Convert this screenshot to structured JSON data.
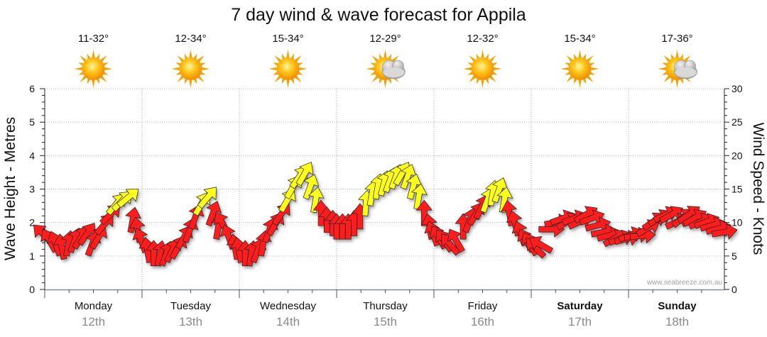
{
  "chart_data": {
    "type": "line",
    "title": "7 day wind & wave forecast for Appila",
    "ylabel_left": "Wave Height - Metres",
    "ylabel_right": "Wind Speed - Knots",
    "ylim_left": [
      0,
      6
    ],
    "ylim_right": [
      0,
      30
    ],
    "yticks_left": [
      "0",
      "1",
      "2",
      "3",
      "4",
      "5",
      "6"
    ],
    "yticks_right": [
      "0",
      "5",
      "10",
      "15",
      "20",
      "25",
      "30"
    ],
    "credit": "www.seabreeze.com.au",
    "days": [
      {
        "name": "Monday",
        "date": "12th",
        "temp": "11-32°",
        "weather": "sunny",
        "bold": false
      },
      {
        "name": "Tuesday",
        "date": "13th",
        "temp": "12-34°",
        "weather": "sunny",
        "bold": false
      },
      {
        "name": "Wednesday",
        "date": "14th",
        "temp": "15-34°",
        "weather": "sunny",
        "bold": false
      },
      {
        "name": "Thursday",
        "date": "15th",
        "temp": "12-29°",
        "weather": "partly-cloudy",
        "bold": false
      },
      {
        "name": "Friday",
        "date": "16th",
        "temp": "12-32°",
        "weather": "sunny",
        "bold": false
      },
      {
        "name": "Saturday",
        "date": "17th",
        "temp": "15-34°",
        "weather": "sunny",
        "bold": true
      },
      {
        "name": "Sunday",
        "date": "18th",
        "temp": "17-36°",
        "weather": "partly-cloudy",
        "bold": true
      }
    ],
    "wind_series": {
      "name": "Wind speed (knots) with direction",
      "colors": {
        "light": "#ff1a1a",
        "strong": "#ffff1a"
      },
      "strong_threshold_knots": 12.5,
      "points": [
        {
          "t": 0.0,
          "kts": 8.0,
          "dir": 135
        },
        {
          "t": 0.06,
          "kts": 7.0,
          "dir": 150
        },
        {
          "t": 0.12,
          "kts": 6.5,
          "dir": 160
        },
        {
          "t": 0.18,
          "kts": 6.0,
          "dir": 170
        },
        {
          "t": 0.24,
          "kts": 6.5,
          "dir": 190
        },
        {
          "t": 0.3,
          "kts": 7.0,
          "dir": 200
        },
        {
          "t": 0.36,
          "kts": 7.5,
          "dir": 210
        },
        {
          "t": 0.42,
          "kts": 8.0,
          "dir": 215
        },
        {
          "t": 0.48,
          "kts": 6.5,
          "dir": 200
        },
        {
          "t": 0.54,
          "kts": 7.5,
          "dir": 210
        },
        {
          "t": 0.6,
          "kts": 9.5,
          "dir": 220
        },
        {
          "t": 0.66,
          "kts": 11.0,
          "dir": 225
        },
        {
          "t": 0.72,
          "kts": 12.5,
          "dir": 220
        },
        {
          "t": 0.78,
          "kts": 13.0,
          "dir": 225
        },
        {
          "t": 0.84,
          "kts": 13.5,
          "dir": 230
        },
        {
          "t": 0.9,
          "kts": 10.0,
          "dir": 190
        },
        {
          "t": 0.96,
          "kts": 8.5,
          "dir": 170
        },
        {
          "t": 1.0,
          "kts": 7.0,
          "dir": 160
        },
        {
          "t": 1.06,
          "kts": 5.5,
          "dir": 170
        },
        {
          "t": 1.12,
          "kts": 5.0,
          "dir": 180
        },
        {
          "t": 1.18,
          "kts": 5.0,
          "dir": 190
        },
        {
          "t": 1.24,
          "kts": 5.0,
          "dir": 200
        },
        {
          "t": 1.3,
          "kts": 5.5,
          "dir": 205
        },
        {
          "t": 1.36,
          "kts": 6.0,
          "dir": 210
        },
        {
          "t": 1.42,
          "kts": 7.5,
          "dir": 210
        },
        {
          "t": 1.48,
          "kts": 8.5,
          "dir": 200
        },
        {
          "t": 1.54,
          "kts": 10.5,
          "dir": 200
        },
        {
          "t": 1.6,
          "kts": 12.5,
          "dir": 210
        },
        {
          "t": 1.66,
          "kts": 13.5,
          "dir": 220
        },
        {
          "t": 1.72,
          "kts": 11.0,
          "dir": 200
        },
        {
          "t": 1.78,
          "kts": 9.0,
          "dir": 190
        },
        {
          "t": 1.84,
          "kts": 9.5,
          "dir": 150
        },
        {
          "t": 1.9,
          "kts": 7.5,
          "dir": 160
        },
        {
          "t": 1.96,
          "kts": 6.0,
          "dir": 170
        },
        {
          "t": 2.0,
          "kts": 5.5,
          "dir": 170
        },
        {
          "t": 2.06,
          "kts": 5.0,
          "dir": 180
        },
        {
          "t": 2.12,
          "kts": 5.0,
          "dir": 190
        },
        {
          "t": 2.18,
          "kts": 5.5,
          "dir": 200
        },
        {
          "t": 2.24,
          "kts": 6.5,
          "dir": 190
        },
        {
          "t": 2.3,
          "kts": 8.5,
          "dir": 200
        },
        {
          "t": 2.36,
          "kts": 9.5,
          "dir": 210
        },
        {
          "t": 2.42,
          "kts": 11.0,
          "dir": 215
        },
        {
          "t": 2.48,
          "kts": 13.0,
          "dir": 210
        },
        {
          "t": 2.54,
          "kts": 15.0,
          "dir": 210
        },
        {
          "t": 2.6,
          "kts": 16.5,
          "dir": 215
        },
        {
          "t": 2.66,
          "kts": 17.0,
          "dir": 210
        },
        {
          "t": 2.72,
          "kts": 15.0,
          "dir": 200
        },
        {
          "t": 2.78,
          "kts": 13.0,
          "dir": 190
        },
        {
          "t": 2.84,
          "kts": 11.0,
          "dir": 180
        },
        {
          "t": 2.9,
          "kts": 10.0,
          "dir": 180
        },
        {
          "t": 2.96,
          "kts": 9.5,
          "dir": 180
        },
        {
          "t": 3.0,
          "kts": 9.0,
          "dir": 180
        },
        {
          "t": 3.06,
          "kts": 9.0,
          "dir": 180
        },
        {
          "t": 3.12,
          "kts": 9.0,
          "dir": 180
        },
        {
          "t": 3.18,
          "kts": 9.5,
          "dir": 180
        },
        {
          "t": 3.24,
          "kts": 10.5,
          "dir": 180
        },
        {
          "t": 3.3,
          "kts": 12.5,
          "dir": 185
        },
        {
          "t": 3.36,
          "kts": 14.0,
          "dir": 190
        },
        {
          "t": 3.42,
          "kts": 15.0,
          "dir": 190
        },
        {
          "t": 3.48,
          "kts": 15.5,
          "dir": 195
        },
        {
          "t": 3.54,
          "kts": 16.0,
          "dir": 200
        },
        {
          "t": 3.6,
          "kts": 16.5,
          "dir": 200
        },
        {
          "t": 3.66,
          "kts": 17.0,
          "dir": 210
        },
        {
          "t": 3.72,
          "kts": 16.5,
          "dir": 200
        },
        {
          "t": 3.78,
          "kts": 15.0,
          "dir": 195
        },
        {
          "t": 3.84,
          "kts": 13.5,
          "dir": 190
        },
        {
          "t": 3.9,
          "kts": 11.0,
          "dir": 180
        },
        {
          "t": 3.96,
          "kts": 9.0,
          "dir": 170
        },
        {
          "t": 4.0,
          "kts": 8.0,
          "dir": 160
        },
        {
          "t": 4.06,
          "kts": 7.5,
          "dir": 150
        },
        {
          "t": 4.12,
          "kts": 7.0,
          "dir": 145
        },
        {
          "t": 4.18,
          "kts": 6.5,
          "dir": 140
        },
        {
          "t": 4.24,
          "kts": 7.0,
          "dir": 150
        },
        {
          "t": 4.3,
          "kts": 9.0,
          "dir": 180
        },
        {
          "t": 4.36,
          "kts": 10.0,
          "dir": 200
        },
        {
          "t": 4.42,
          "kts": 11.0,
          "dir": 210
        },
        {
          "t": 4.48,
          "kts": 12.0,
          "dir": 205
        },
        {
          "t": 4.54,
          "kts": 13.0,
          "dir": 200
        },
        {
          "t": 4.6,
          "kts": 14.0,
          "dir": 190
        },
        {
          "t": 4.66,
          "kts": 14.5,
          "dir": 200
        },
        {
          "t": 4.72,
          "kts": 13.0,
          "dir": 190
        },
        {
          "t": 4.78,
          "kts": 11.0,
          "dir": 170
        },
        {
          "t": 4.84,
          "kts": 9.5,
          "dir": 165
        },
        {
          "t": 4.9,
          "kts": 8.0,
          "dir": 160
        },
        {
          "t": 4.96,
          "kts": 7.0,
          "dir": 150
        },
        {
          "t": 5.0,
          "kts": 6.5,
          "dir": 150
        },
        {
          "t": 5.06,
          "kts": 6.0,
          "dir": 135
        },
        {
          "t": 5.12,
          "kts": 6.5,
          "dir": 120
        },
        {
          "t": 5.18,
          "kts": 9.0,
          "dir": 270
        },
        {
          "t": 5.24,
          "kts": 10.0,
          "dir": 260
        },
        {
          "t": 5.3,
          "kts": 10.5,
          "dir": 250
        },
        {
          "t": 5.36,
          "kts": 10.0,
          "dir": 240
        },
        {
          "t": 5.42,
          "kts": 10.5,
          "dir": 250
        },
        {
          "t": 5.48,
          "kts": 10.0,
          "dir": 245
        },
        {
          "t": 5.54,
          "kts": 11.0,
          "dir": 240
        },
        {
          "t": 5.6,
          "kts": 10.5,
          "dir": 250
        },
        {
          "t": 5.66,
          "kts": 9.5,
          "dir": 255
        },
        {
          "t": 5.72,
          "kts": 8.5,
          "dir": 260
        },
        {
          "t": 5.78,
          "kts": 8.0,
          "dir": 255
        },
        {
          "t": 5.84,
          "kts": 7.5,
          "dir": 240
        },
        {
          "t": 5.9,
          "kts": 7.5,
          "dir": 250
        },
        {
          "t": 5.96,
          "kts": 7.5,
          "dir": 255
        },
        {
          "t": 6.0,
          "kts": 8.0,
          "dir": 250
        },
        {
          "t": 6.06,
          "kts": 8.0,
          "dir": 260
        },
        {
          "t": 6.12,
          "kts": 8.0,
          "dir": 265
        },
        {
          "t": 6.18,
          "kts": 9.0,
          "dir": 240
        },
        {
          "t": 6.24,
          "kts": 10.0,
          "dir": 235
        },
        {
          "t": 6.3,
          "kts": 10.5,
          "dir": 240
        },
        {
          "t": 6.36,
          "kts": 11.0,
          "dir": 245
        },
        {
          "t": 6.42,
          "kts": 11.0,
          "dir": 240
        },
        {
          "t": 6.48,
          "kts": 10.0,
          "dir": 245
        },
        {
          "t": 6.54,
          "kts": 10.5,
          "dir": 230
        },
        {
          "t": 6.6,
          "kts": 11.0,
          "dir": 235
        },
        {
          "t": 6.66,
          "kts": 10.5,
          "dir": 240
        },
        {
          "t": 6.72,
          "kts": 10.0,
          "dir": 245
        },
        {
          "t": 6.78,
          "kts": 10.0,
          "dir": 250
        },
        {
          "t": 6.84,
          "kts": 9.5,
          "dir": 255
        },
        {
          "t": 6.9,
          "kts": 9.0,
          "dir": 255
        },
        {
          "t": 6.96,
          "kts": 8.5,
          "dir": 260
        }
      ]
    }
  }
}
